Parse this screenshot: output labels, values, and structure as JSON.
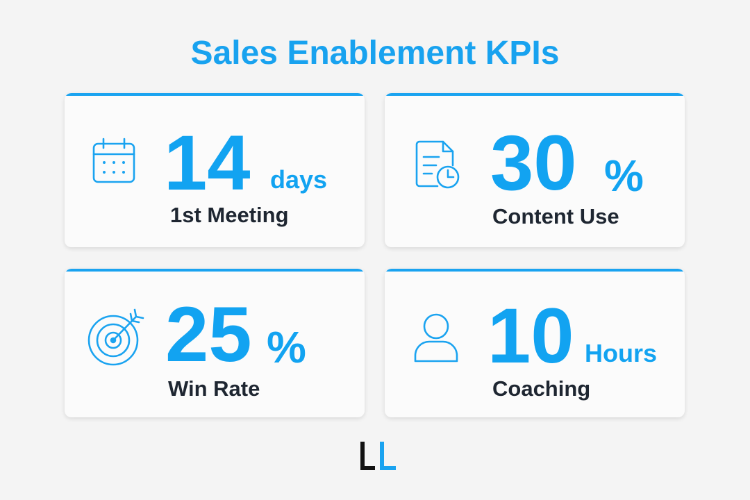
{
  "title": "Sales Enablement KPIs",
  "cards": [
    {
      "value": 14,
      "unit": "days",
      "label": "1st Meeting"
    },
    {
      "value": 30,
      "unit": "%",
      "label": "Content Use"
    },
    {
      "value": 25,
      "unit": "%",
      "label": "Win Rate"
    },
    {
      "value": 10,
      "unit": "Hours",
      "label": "Coaching"
    }
  ]
}
